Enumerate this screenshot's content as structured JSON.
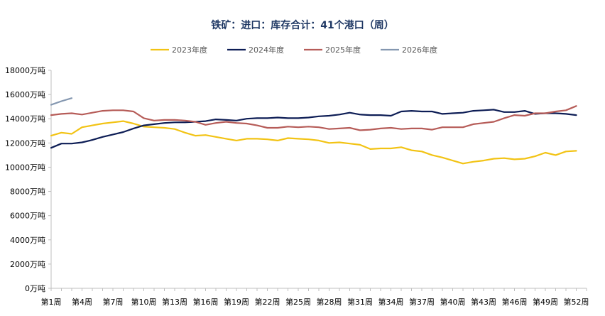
{
  "chart_data": {
    "type": "line",
    "title": "铁矿：进口：库存合计：41个港口（周）",
    "xlabel": "",
    "ylabel": "",
    "ylim": [
      0,
      18000
    ],
    "yticks": [
      0,
      2000,
      4000,
      6000,
      8000,
      10000,
      12000,
      14000,
      16000,
      18000
    ],
    "ytick_labels": [
      "0万吨",
      "2000万吨",
      "4000万吨",
      "6000万吨",
      "8000万吨",
      "10000万吨",
      "12000万吨",
      "14000万吨",
      "16000万吨",
      "18000万吨"
    ],
    "x": [
      1,
      2,
      3,
      4,
      5,
      6,
      7,
      8,
      9,
      10,
      11,
      12,
      13,
      14,
      15,
      16,
      17,
      18,
      19,
      20,
      21,
      22,
      23,
      24,
      25,
      26,
      27,
      28,
      29,
      30,
      31,
      32,
      33,
      34,
      35,
      36,
      37,
      38,
      39,
      40,
      41,
      42,
      43,
      44,
      45,
      46,
      47,
      48,
      49,
      50,
      51,
      52,
      53
    ],
    "xtick_positions": [
      1,
      4,
      7,
      10,
      13,
      16,
      19,
      22,
      25,
      28,
      31,
      34,
      37,
      40,
      43,
      46,
      49,
      52
    ],
    "xtick_labels": [
      "第1周",
      "第4周",
      "第7周",
      "第10周",
      "第13周",
      "第16周",
      "第19周",
      "第22周",
      "第25周",
      "第28周",
      "第31周",
      "第34周",
      "第37周",
      "第40周",
      "第43周",
      "第46周",
      "第49周",
      "第52周"
    ],
    "grid": false,
    "legend_position": "top",
    "series": [
      {
        "name": "2023年度",
        "color": "#f2c314",
        "values": [
          12600,
          12850,
          12750,
          13300,
          13450,
          13600,
          13700,
          13800,
          13600,
          13350,
          13300,
          13250,
          13150,
          12850,
          12600,
          12650,
          12500,
          12350,
          12200,
          12350,
          12350,
          12300,
          12200,
          12400,
          12350,
          12300,
          12200,
          12000,
          12050,
          11950,
          11850,
          11500,
          11550,
          11550,
          11650,
          11400,
          11300,
          11000,
          10800,
          10550,
          10300,
          10450,
          10550,
          10700,
          10750,
          10650,
          10700,
          10900,
          11200,
          11000,
          11300,
          11350,
          null
        ]
      },
      {
        "name": "2024年度",
        "color": "#0d1d55",
        "values": [
          11600,
          11950,
          11950,
          12050,
          12250,
          12500,
          12700,
          12900,
          13200,
          13450,
          13550,
          13650,
          13700,
          13700,
          13750,
          13800,
          13950,
          13900,
          13850,
          14000,
          14050,
          14050,
          14100,
          14050,
          14050,
          14100,
          14200,
          14250,
          14350,
          14500,
          14350,
          14300,
          14300,
          14250,
          14600,
          14650,
          14600,
          14600,
          14400,
          14450,
          14500,
          14650,
          14700,
          14750,
          14550,
          14550,
          14650,
          14400,
          14450,
          14450,
          14400,
          14300,
          null
        ]
      },
      {
        "name": "2025年度",
        "color": "#b65c58",
        "values": [
          14300,
          14400,
          14450,
          14350,
          14500,
          14650,
          14700,
          14700,
          14600,
          14050,
          13850,
          13900,
          13900,
          13850,
          13750,
          13500,
          13650,
          13750,
          13650,
          13600,
          13450,
          13250,
          13250,
          13350,
          13300,
          13350,
          13300,
          13150,
          13200,
          13250,
          13050,
          13100,
          13200,
          13250,
          13150,
          13200,
          13200,
          13100,
          13300,
          13300,
          13300,
          13550,
          13650,
          13750,
          14050,
          14300,
          14250,
          14450,
          14450,
          14600,
          14700,
          15050,
          null
        ]
      },
      {
        "name": "2026年度",
        "color": "#8497b0",
        "values": [
          15150,
          15450,
          15700,
          null,
          null,
          null,
          null,
          null,
          null,
          null,
          null,
          null,
          null,
          null,
          null,
          null,
          null,
          null,
          null,
          null,
          null,
          null,
          null,
          null,
          null,
          null,
          null,
          null,
          null,
          null,
          null,
          null,
          null,
          null,
          null,
          null,
          null,
          null,
          null,
          null,
          null,
          null,
          null,
          null,
          null,
          null,
          null,
          null,
          null,
          null,
          null,
          null,
          null
        ]
      }
    ]
  }
}
